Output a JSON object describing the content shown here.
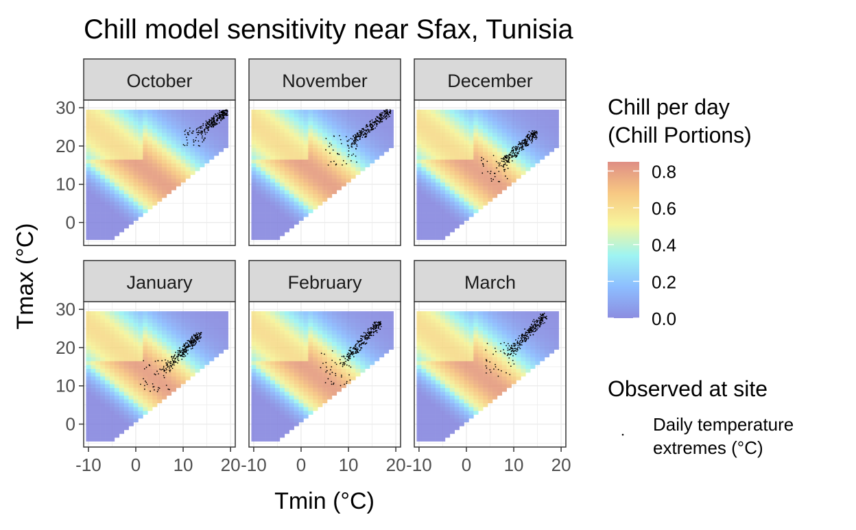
{
  "chart_data": {
    "type": "heatmap",
    "title": "Chill model sensitivity near Sfax, Tunisia",
    "xlabel": "Tmin (°C)",
    "ylabel": "Tmax (°C)",
    "xlim": [
      -11,
      21
    ],
    "ylim": [
      -6,
      32
    ],
    "x_ticks": [
      -10,
      0,
      10,
      20
    ],
    "y_ticks": [
      0,
      10,
      20,
      30
    ],
    "grid": true,
    "panels": [
      {
        "month": "October",
        "obs": {
          "tmin": [
            10,
            19.5
          ],
          "tmax": [
            20,
            29.5
          ],
          "slope": 1.0
        }
      },
      {
        "month": "November",
        "obs": {
          "tmin": [
            5,
            19
          ],
          "tmax": [
            15,
            29.5
          ],
          "slope": 1.0
        }
      },
      {
        "month": "December",
        "obs": {
          "tmin": [
            3,
            15
          ],
          "tmax": [
            10,
            24
          ],
          "slope": 1.1
        }
      },
      {
        "month": "January",
        "obs": {
          "tmin": [
            1,
            14
          ],
          "tmax": [
            8,
            24
          ],
          "slope": 1.1
        }
      },
      {
        "month": "February",
        "obs": {
          "tmin": [
            4,
            17
          ],
          "tmax": [
            10,
            27
          ],
          "slope": 1.1
        }
      },
      {
        "month": "March",
        "obs": {
          "tmin": [
            4,
            17
          ],
          "tmax": [
            12,
            29
          ],
          "slope": 1.1
        }
      }
    ],
    "legend_color": {
      "title_lines": [
        "Chill per day",
        "(Chill Portions)"
      ],
      "ticks": [
        "0.8",
        "0.6",
        "0.4",
        "0.2",
        "0.0"
      ],
      "range": [
        0,
        0.85
      ],
      "stops": [
        "#7879db",
        "#79b2ff",
        "#8df2f0",
        "#f5f38a",
        "#f6be6d",
        "#d97a6e"
      ]
    },
    "legend_points": {
      "title": "Observed at site",
      "label_lines": [
        "Daily temperature",
        "extremes (°C)"
      ]
    }
  }
}
